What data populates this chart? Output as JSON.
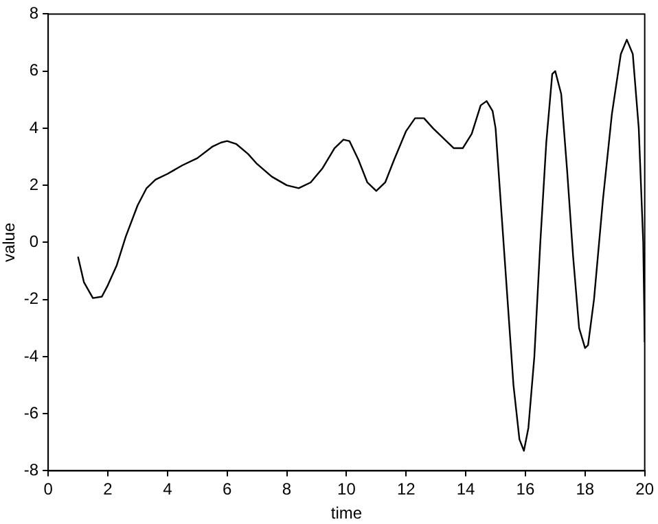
{
  "chart_data": {
    "type": "line",
    "xlabel": "time",
    "ylabel": "value",
    "xlim": [
      0,
      20
    ],
    "xticks": [
      0,
      2,
      4,
      6,
      8,
      10,
      12,
      14,
      16,
      18,
      20
    ],
    "ylim": [
      -8,
      8
    ],
    "yticks": [
      -8,
      -6,
      -4,
      -2,
      0,
      2,
      4,
      6,
      8
    ],
    "grid": false,
    "legend": false,
    "marker": "none",
    "line_style": "solid",
    "x": [
      1.0,
      1.2,
      1.5,
      1.8,
      2.0,
      2.3,
      2.6,
      3.0,
      3.3,
      3.6,
      4.0,
      4.5,
      5.0,
      5.5,
      5.8,
      6.0,
      6.3,
      6.7,
      7.0,
      7.5,
      8.0,
      8.4,
      8.8,
      9.2,
      9.6,
      9.9,
      10.1,
      10.4,
      10.7,
      11.0,
      11.3,
      11.6,
      12.0,
      12.3,
      12.6,
      12.9,
      13.3,
      13.6,
      13.9,
      14.2,
      14.5,
      14.7,
      14.9,
      15.0,
      15.2,
      15.4,
      15.6,
      15.8,
      15.95,
      16.1,
      16.3,
      16.5,
      16.7,
      16.9,
      17.0,
      17.2,
      17.4,
      17.6,
      17.8,
      18.0,
      18.1,
      18.3,
      18.6,
      18.9,
      19.2,
      19.4,
      19.6,
      19.8,
      19.95,
      20.0
    ],
    "series": [
      {
        "color": "#000000",
        "values": [
          -0.5,
          -1.4,
          -1.95,
          -1.9,
          -1.5,
          -0.8,
          0.2,
          1.3,
          1.9,
          2.2,
          2.4,
          2.7,
          2.95,
          3.35,
          3.5,
          3.55,
          3.45,
          3.1,
          2.75,
          2.3,
          2.0,
          1.9,
          2.1,
          2.6,
          3.3,
          3.6,
          3.55,
          2.9,
          2.1,
          1.8,
          2.1,
          2.9,
          3.9,
          4.35,
          4.35,
          4.0,
          3.6,
          3.3,
          3.3,
          3.8,
          4.8,
          4.95,
          4.6,
          4.0,
          1.0,
          -2.0,
          -5.0,
          -6.9,
          -7.3,
          -6.5,
          -4.0,
          0.0,
          3.5,
          5.9,
          6.0,
          5.2,
          2.5,
          -0.5,
          -3.0,
          -3.7,
          -3.6,
          -2.0,
          1.5,
          4.5,
          6.6,
          7.1,
          6.6,
          4.0,
          0.0,
          -3.5
        ]
      }
    ]
  }
}
